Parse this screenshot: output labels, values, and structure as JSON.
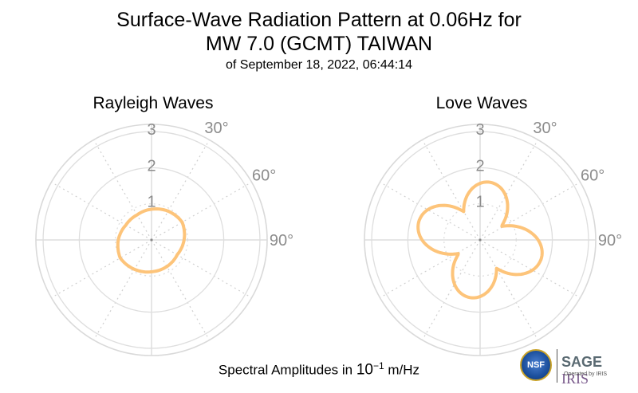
{
  "title": {
    "line1": "Surface-Wave Radiation Pattern at 0.06Hz for",
    "line2": "MW 7.0 (GCMT) TAIWAN",
    "line3": "of September 18, 2022, 06:44:14"
  },
  "footer": {
    "prefix": "Spectral Amplitudes in ",
    "base": "10",
    "exponent": "−1",
    "unit": " m/Hz"
  },
  "logos": {
    "nsf": "NSF",
    "sage": "SAGE",
    "iris": "IRIS",
    "operated": "Operated by IRIS"
  },
  "chart_data": [
    {
      "type": "polar",
      "title": "Rayleigh Waves",
      "radial_ticks": [
        "1",
        "2",
        "3"
      ],
      "angle_labels": [
        "30°",
        "60°",
        "90°"
      ],
      "rmax": 3.2,
      "color": "#fdc47a",
      "theta_deg": [
        0,
        30,
        60,
        90,
        120,
        150,
        180,
        210,
        240,
        270,
        300,
        330
      ],
      "r": [
        0.85,
        0.92,
        0.98,
        0.9,
        0.82,
        0.85,
        0.88,
        0.94,
        1.0,
        0.92,
        0.82,
        0.8
      ]
    },
    {
      "type": "polar",
      "title": "Love Waves",
      "radial_ticks": [
        "1",
        "2",
        "3"
      ],
      "angle_labels": [
        "30°",
        "60°",
        "90°"
      ],
      "rmax": 3.2,
      "color": "#fdc47a",
      "model": "four-lobe",
      "lobes": [
        {
          "center_deg": 10,
          "amplitude": 1.6
        },
        {
          "center_deg": 107,
          "amplitude": 1.75
        },
        {
          "center_deg": 190,
          "amplitude": 1.6
        },
        {
          "center_deg": 287,
          "amplitude": 1.75
        }
      ]
    }
  ]
}
